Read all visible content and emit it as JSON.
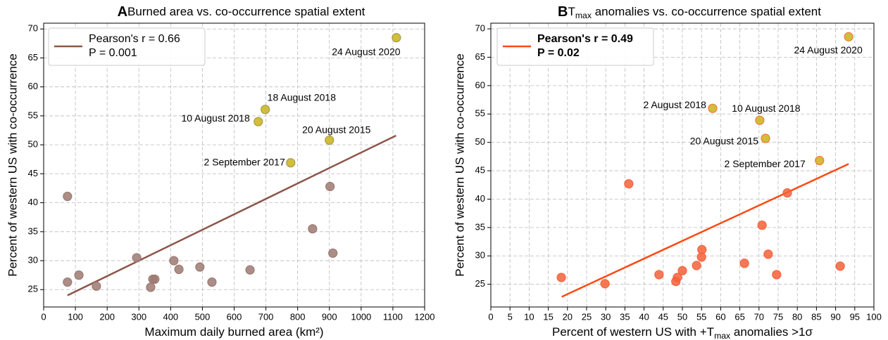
{
  "chart_data": [
    {
      "type": "scatter",
      "panel_label": "A",
      "title": [
        {
          "text": "Burned area vs. co-occurrence spatial extent"
        }
      ],
      "xlabel": [
        {
          "text": "Maximum daily burned area (km²)"
        }
      ],
      "ylabel": "Percent of western US with co-occurrence",
      "xlim": [
        0,
        1200
      ],
      "xticks": [
        0,
        100,
        200,
        300,
        400,
        500,
        600,
        700,
        800,
        900,
        1000,
        1100,
        1200
      ],
      "ylim": [
        22,
        71
      ],
      "yticks": [
        25,
        30,
        35,
        40,
        45,
        50,
        55,
        60,
        65,
        70
      ],
      "grid": true,
      "legend": "upper left",
      "series": [
        {
          "color": "#9c7a72",
          "edge": "#9c7a72",
          "x": [
            75,
            75,
            111,
            166,
            293,
            337,
            344,
            350,
            410,
            426,
            492,
            530,
            650,
            847,
            902,
            911
          ],
          "y": [
            41.1,
            26.3,
            27.5,
            25.6,
            30.5,
            25.4,
            26.8,
            26.8,
            30.0,
            28.5,
            28.9,
            26.3,
            28.4,
            35.5,
            42.8,
            31.3
          ]
        },
        {
          "color": "#c9b31a",
          "edge": "#a89a4a",
          "x": [
            676,
            698,
            778,
            900,
            1111
          ],
          "y": [
            54.0,
            56.1,
            46.9,
            50.8,
            68.5
          ],
          "labels": [
            "10 August 2018",
            "18 August 2018",
            "2 September 2017",
            "20 August 2015",
            "24 August 2020"
          ]
        }
      ],
      "fit": {
        "color": "#8c564b",
        "bold": false,
        "x": [
          75,
          1110
        ],
        "y": [
          24.0,
          51.6
        ],
        "legend": [
          "Pearson's r = 0.66",
          "P = 0.001"
        ]
      }
    },
    {
      "type": "scatter",
      "panel_label": "B",
      "title": [
        {
          "text": "T"
        },
        {
          "text": "max",
          "sub": true
        },
        {
          "text": " anomalies vs. co-occurrence spatial extent"
        }
      ],
      "xlabel": [
        {
          "text": "Percent of western US with +T"
        },
        {
          "text": "max",
          "sub": true
        },
        {
          "text": " anomalies >1σ"
        }
      ],
      "ylabel": "Percent of western US with co-occurrence",
      "xlim": [
        0,
        100
      ],
      "xticks": [
        0,
        5,
        10,
        15,
        20,
        25,
        30,
        35,
        40,
        45,
        50,
        55,
        60,
        65,
        70,
        75,
        80,
        85,
        90,
        95,
        100
      ],
      "ylim": [
        21,
        71
      ],
      "yticks": [
        25,
        30,
        35,
        40,
        45,
        50,
        55,
        60,
        65,
        70
      ],
      "grid": true,
      "legend": "upper left",
      "series": [
        {
          "color": "#f4623a",
          "edge": "#f4623a",
          "x": [
            18.4,
            29.8,
            36.0,
            43.9,
            48.3,
            48.7,
            50.0,
            53.7,
            55.0,
            55.1,
            66.2,
            70.8,
            72.4,
            74.6,
            77.4,
            91.2
          ],
          "y": [
            26.2,
            25.1,
            42.7,
            26.7,
            25.5,
            26.2,
            27.4,
            28.3,
            29.8,
            31.1,
            28.7,
            35.4,
            30.3,
            26.7,
            41.1,
            28.2
          ]
        },
        {
          "color": "#c9b31a",
          "edge": "#f07a3a",
          "x": [
            57.9,
            70.2,
            71.7,
            85.8,
            93.4
          ],
          "y": [
            56.0,
            53.9,
            50.7,
            46.8,
            68.6
          ],
          "labels": [
            "2 August 2018",
            "10 August 2018",
            "20 August 2015",
            "2 September 2017",
            "24 August 2020"
          ]
        }
      ],
      "fit": {
        "color": "#ff4a12",
        "bold": true,
        "x": [
          18.5,
          93.4
        ],
        "y": [
          22.8,
          46.2
        ],
        "legend": [
          "Pearson's r = 0.49",
          "P = 0.02"
        ]
      }
    }
  ]
}
